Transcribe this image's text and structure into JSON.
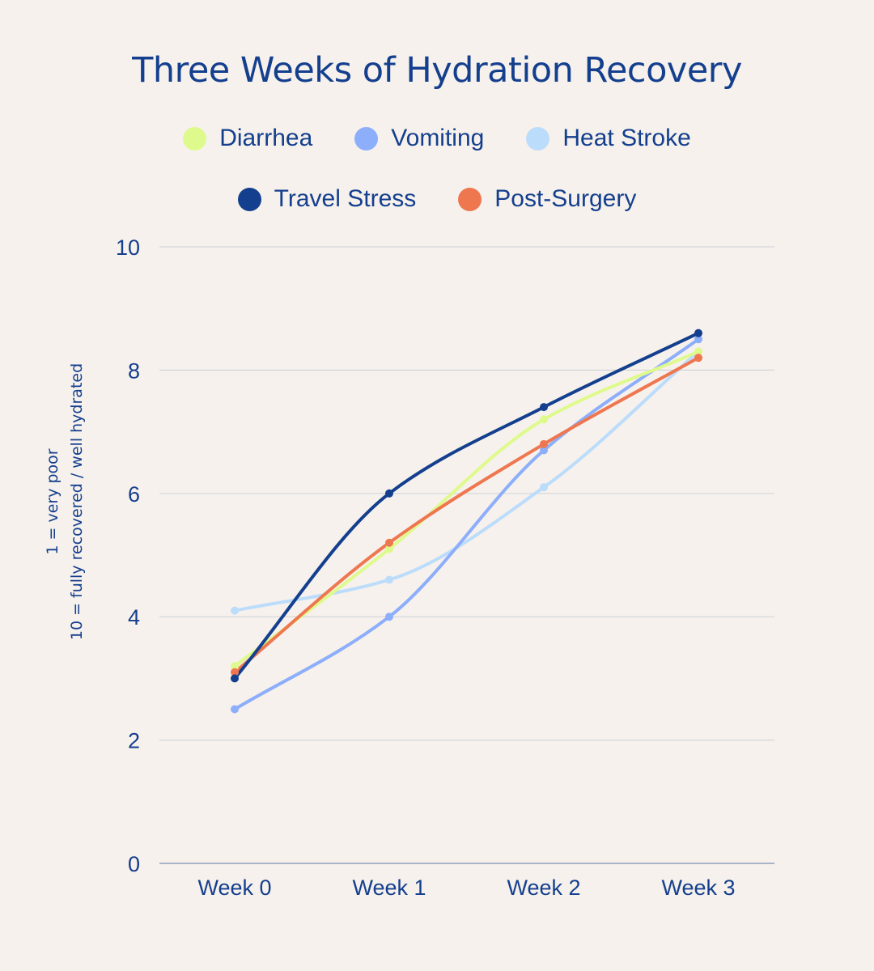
{
  "chart_data": {
    "type": "line",
    "title": "Three Weeks of Hydration Recovery",
    "xlabel": "",
    "ylabel_lines": [
      "1 = very poor",
      "10 = fully recovered / well hydrated"
    ],
    "categories": [
      "Week 0",
      "Week 1",
      "Week 2",
      "Week 3"
    ],
    "ylim": [
      0,
      10
    ],
    "yticks": [
      0,
      2,
      4,
      6,
      8,
      10
    ],
    "grid": true,
    "legend_position": "top-center",
    "smooth": true,
    "series": [
      {
        "name": "Diarrhea",
        "color": "#dffa8c",
        "values": [
          3.2,
          5.1,
          7.2,
          8.3
        ]
      },
      {
        "name": "Vomiting",
        "color": "#8daefb",
        "values": [
          2.5,
          4.0,
          6.7,
          8.5
        ]
      },
      {
        "name": "Heat Stroke",
        "color": "#bcdcfb",
        "values": [
          4.1,
          4.6,
          6.1,
          8.3
        ]
      },
      {
        "name": "Travel Stress",
        "color": "#143f8e",
        "values": [
          3.0,
          6.0,
          7.4,
          8.6
        ]
      },
      {
        "name": "Post-Surgery",
        "color": "#ee7750",
        "values": [
          3.1,
          5.2,
          6.8,
          8.2
        ]
      }
    ]
  }
}
